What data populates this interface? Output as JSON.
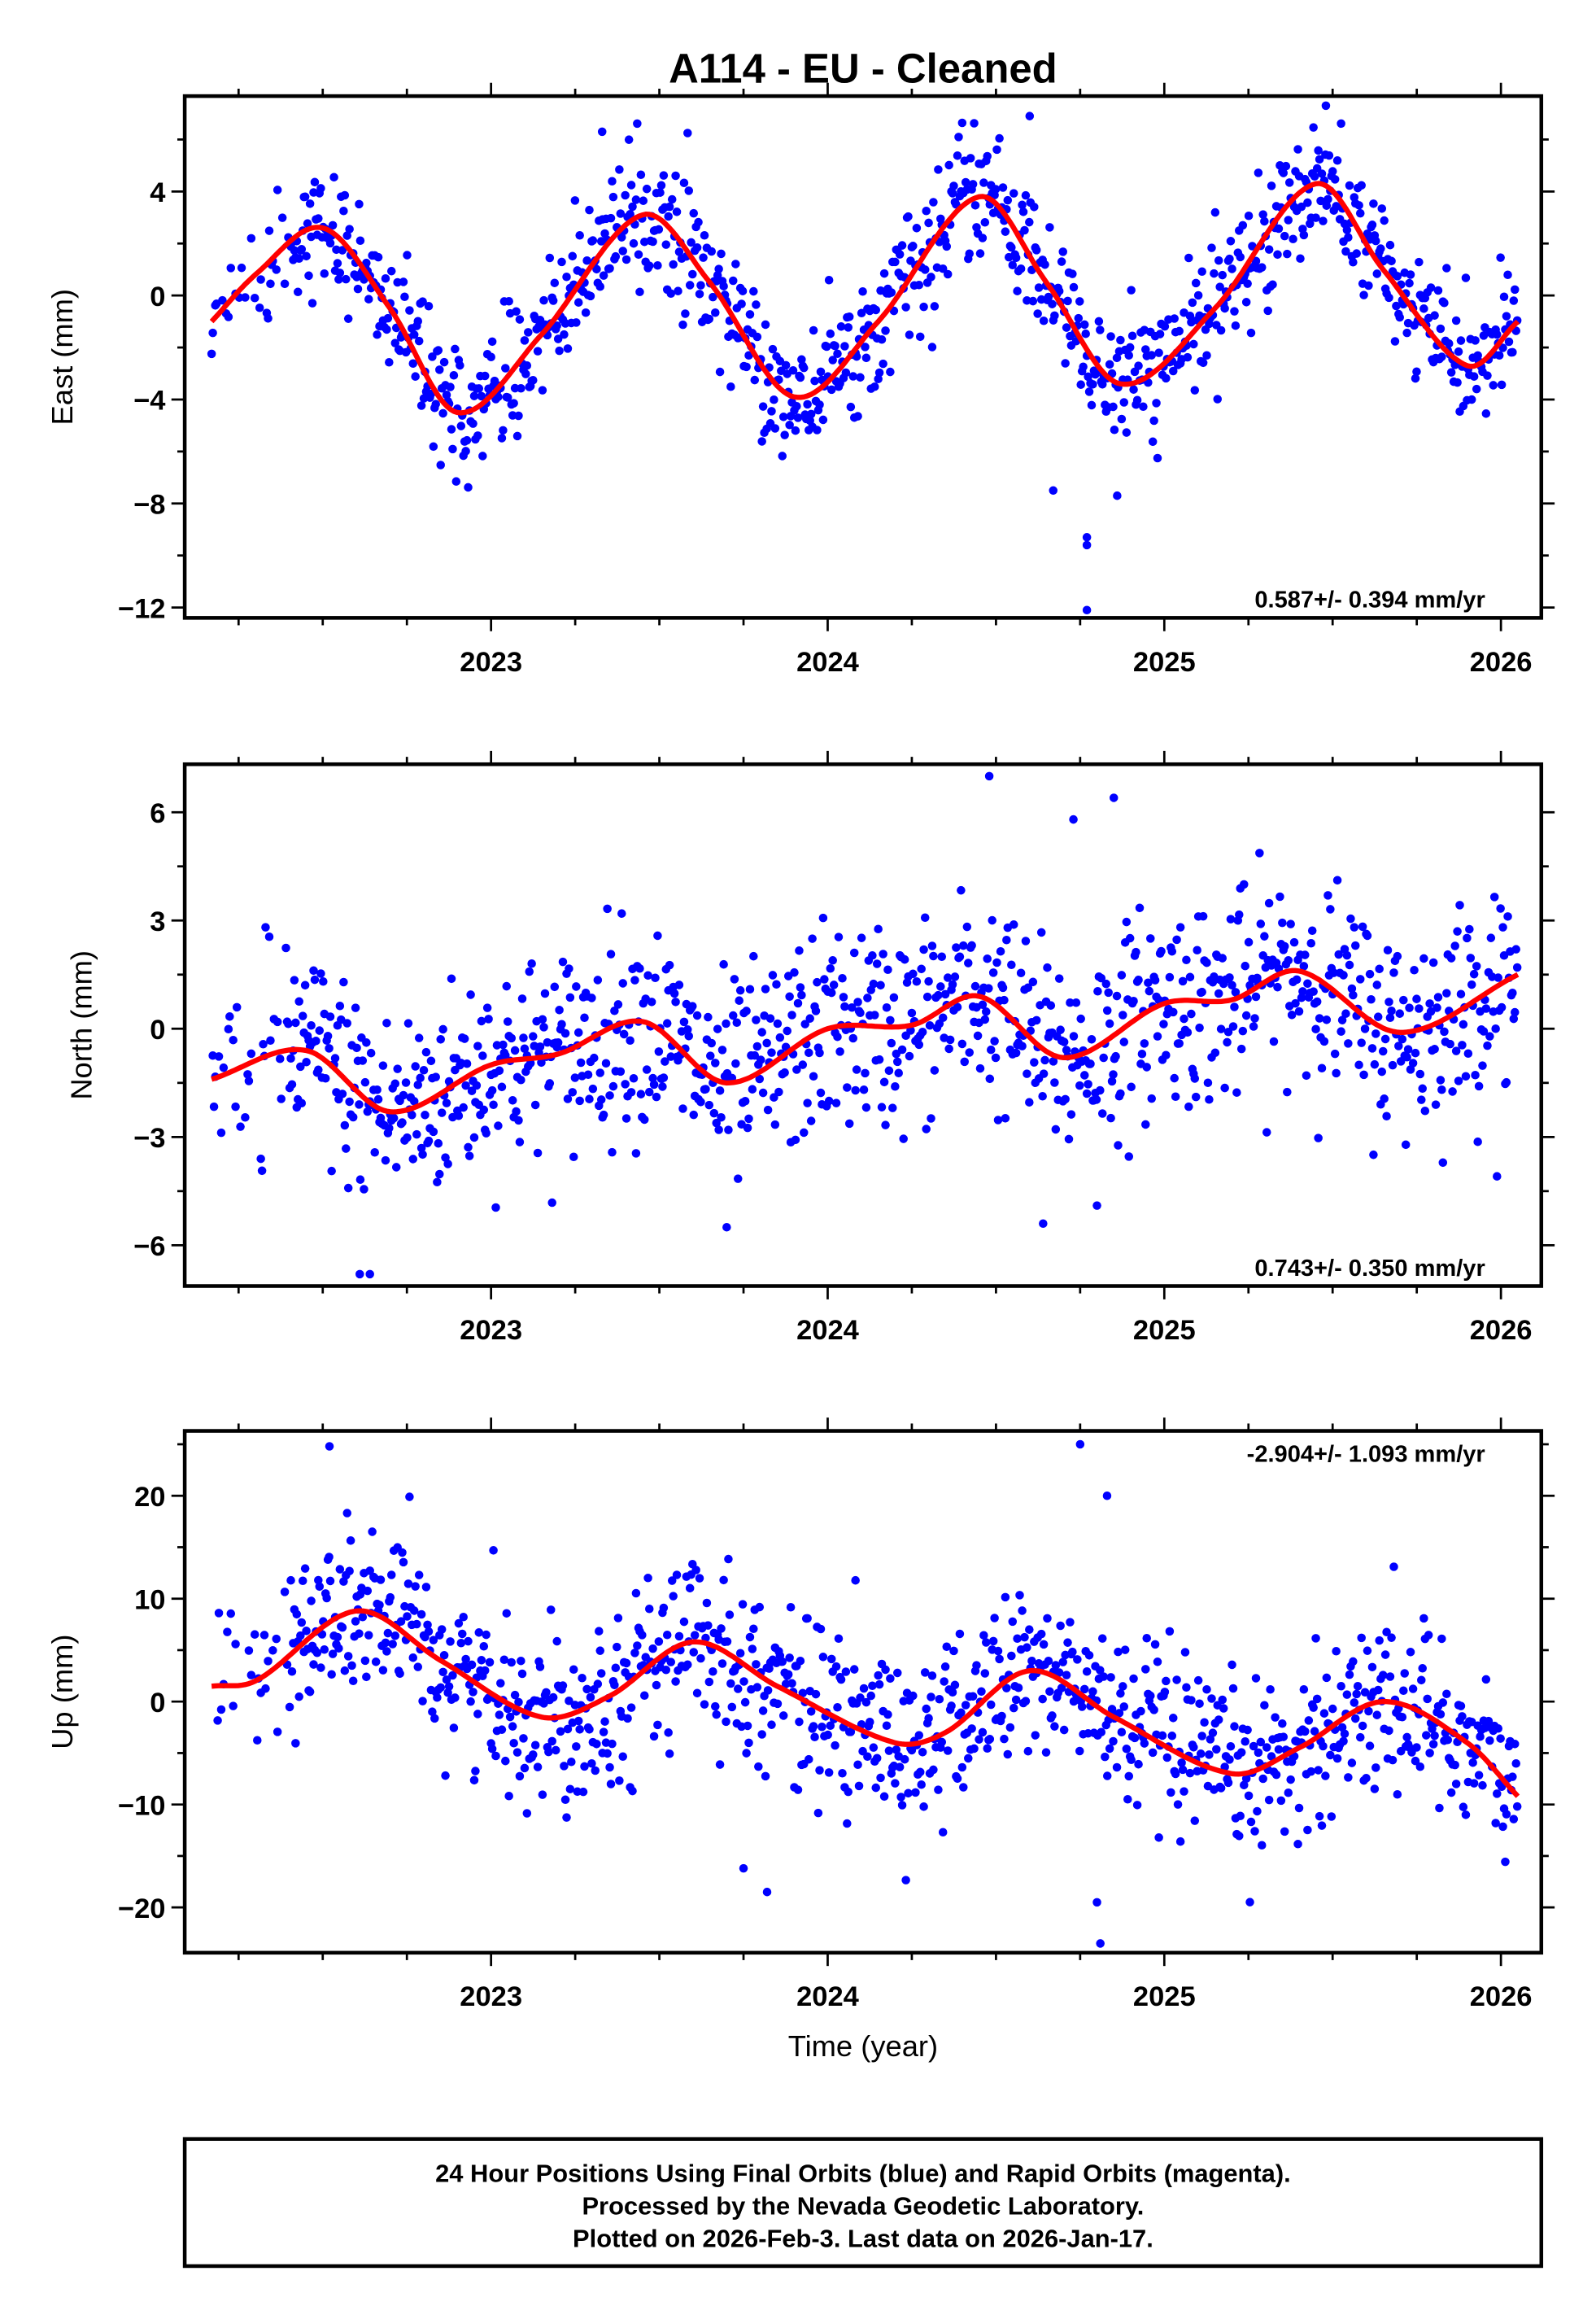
{
  "title": "A114  - EU - Cleaned",
  "xlabel": "Time (year)",
  "footer": [
    "24 Hour Positions Using Final Orbits (blue) and Rapid Orbits (magenta).",
    "Processed by the Nevada Geodetic Laboratory.",
    "Plotted on 2026-Feb-3. Last data on 2026-Jan-17."
  ],
  "colors": {
    "points": "#0000ff",
    "fit": "#ff0000",
    "frame": "#000000"
  },
  "chart_data": [
    {
      "type": "scatter",
      "ylabel": "East (mm)",
      "rate": "0.587+/- 0.394 mm/yr",
      "rate_position": "bottom-right",
      "xlim": [
        2022.09,
        2026.12
      ],
      "ylim": [
        -12.4,
        7.67
      ],
      "x_ticks": [
        "2023",
        "2024",
        "2025",
        "2026"
      ],
      "y_ticks": [
        4,
        0,
        -4,
        -8,
        -12
      ],
      "y_tick_labels": [
        "4",
        "0",
        "−4",
        "−8",
        "−12"
      ],
      "data_span": [
        2022.17,
        2026.05
      ],
      "noise_sigma_mm": 1.2,
      "fit_curve": [
        [
          2022.17,
          -1.0
        ],
        [
          2022.3,
          0.8
        ],
        [
          2022.5,
          2.6
        ],
        [
          2022.7,
          -0.5
        ],
        [
          2022.9,
          -4.5
        ],
        [
          2023.15,
          -1.5
        ],
        [
          2023.45,
          3.1
        ],
        [
          2023.65,
          0.5
        ],
        [
          2023.9,
          -3.9
        ],
        [
          2024.15,
          -1.0
        ],
        [
          2024.45,
          3.8
        ],
        [
          2024.65,
          0.5
        ],
        [
          2024.87,
          -3.4
        ],
        [
          2025.15,
          -0.5
        ],
        [
          2025.45,
          4.3
        ],
        [
          2025.65,
          1.0
        ],
        [
          2025.9,
          -2.7
        ],
        [
          2026.05,
          -1.0
        ]
      ],
      "outliers": [
        [
          2024.77,
          -12.1
        ],
        [
          2024.77,
          -9.3
        ],
        [
          2024.77,
          -9.6
        ],
        [
          2024.67,
          -7.5
        ],
        [
          2024.86,
          -7.7
        ],
        [
          2023.33,
          6.3
        ],
        [
          2024.6,
          6.9
        ],
        [
          2025.48,
          7.3
        ]
      ]
    },
    {
      "type": "scatter",
      "ylabel": "North (mm)",
      "rate": "0.743+/- 0.350 mm/yr",
      "rate_position": "bottom-right",
      "xlim": [
        2022.09,
        2026.12
      ],
      "ylim": [
        -7.13,
        7.33
      ],
      "x_ticks": [
        "2023",
        "2024",
        "2025",
        "2026"
      ],
      "y_ticks": [
        6,
        3,
        0,
        -3,
        -6
      ],
      "y_tick_labels": [
        "6",
        "3",
        "0",
        "−3",
        "−6"
      ],
      "data_span": [
        2022.17,
        2026.05
      ],
      "noise_sigma_mm": 1.4,
      "fit_curve": [
        [
          2022.17,
          -1.4
        ],
        [
          2022.45,
          -0.6
        ],
        [
          2022.7,
          -2.3
        ],
        [
          2023.0,
          -1.0
        ],
        [
          2023.2,
          -0.7
        ],
        [
          2023.45,
          0.2
        ],
        [
          2023.7,
          -1.5
        ],
        [
          2024.0,
          0.0
        ],
        [
          2024.25,
          0.1
        ],
        [
          2024.45,
          0.9
        ],
        [
          2024.7,
          -0.8
        ],
        [
          2025.0,
          0.7
        ],
        [
          2025.2,
          0.8
        ],
        [
          2025.4,
          1.6
        ],
        [
          2025.7,
          -0.1
        ],
        [
          2026.05,
          1.5
        ]
      ],
      "outliers": [
        [
          2024.48,
          7.0
        ],
        [
          2024.73,
          5.8
        ],
        [
          2024.85,
          6.4
        ],
        [
          2022.64,
          -6.8
        ],
        [
          2022.61,
          -6.8
        ],
        [
          2023.7,
          -5.5
        ],
        [
          2024.64,
          -5.4
        ],
        [
          2024.8,
          -4.9
        ]
      ]
    },
    {
      "type": "scatter",
      "ylabel": "Up (mm)",
      "rate": "-2.904+/- 1.093 mm/yr",
      "rate_position": "top-right",
      "xlim": [
        2022.09,
        2026.12
      ],
      "ylim": [
        -24.4,
        26.3
      ],
      "x_ticks": [
        "2023",
        "2024",
        "2025",
        "2026"
      ],
      "y_ticks": [
        20,
        10,
        0,
        -10,
        -20
      ],
      "y_tick_labels": [
        "20",
        "10",
        "0",
        "−10",
        "−20"
      ],
      "data_span": [
        2022.17,
        2026.05
      ],
      "noise_sigma_mm": 4.2,
      "fit_curve": [
        [
          2022.17,
          1.5
        ],
        [
          2022.3,
          2.0
        ],
        [
          2022.6,
          8.8
        ],
        [
          2022.85,
          4.0
        ],
        [
          2023.15,
          -1.5
        ],
        [
          2023.35,
          0.5
        ],
        [
          2023.6,
          5.8
        ],
        [
          2023.85,
          1.5
        ],
        [
          2024.2,
          -4.0
        ],
        [
          2024.35,
          -3.0
        ],
        [
          2024.6,
          3.0
        ],
        [
          2024.85,
          -1.5
        ],
        [
          2025.2,
          -7.0
        ],
        [
          2025.4,
          -4.5
        ],
        [
          2025.65,
          0.0
        ],
        [
          2025.9,
          -4.0
        ],
        [
          2026.05,
          -9.2
        ]
      ],
      "outliers": [
        [
          2022.52,
          24.8
        ],
        [
          2024.75,
          25.0
        ],
        [
          2024.81,
          -23.5
        ],
        [
          2024.8,
          -19.5
        ],
        [
          2023.82,
          -18.5
        ],
        [
          2023.75,
          -16.2
        ],
        [
          2024.83,
          20.0
        ]
      ]
    }
  ]
}
